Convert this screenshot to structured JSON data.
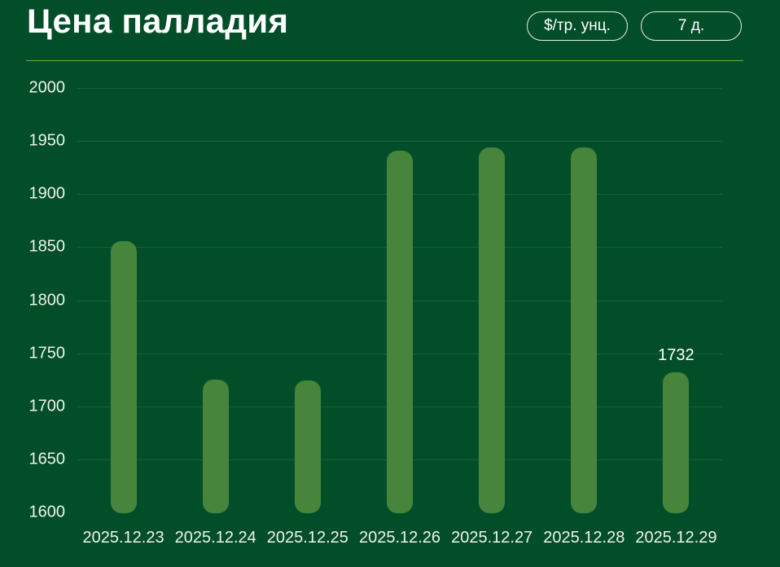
{
  "header": {
    "title": "Цена палладия",
    "unit_button_label": "$/тр. унц.",
    "period_button_label": "7 д."
  },
  "chart_data": {
    "type": "bar",
    "title": "Цена палладия",
    "categories": [
      "2025.12.23",
      "2025.12.24",
      "2025.12.25",
      "2025.12.26",
      "2025.12.27",
      "2025.12.28",
      "2025.12.29"
    ],
    "values": [
      1856,
      1725,
      1724,
      1941,
      1944,
      1944,
      1732
    ],
    "point_labels": [
      "",
      "",
      "",
      "",
      "",
      "",
      "1732"
    ],
    "xlabel": "",
    "ylabel": "",
    "ylim": [
      1600,
      2000
    ],
    "yticks": [
      1600,
      1650,
      1700,
      1750,
      1800,
      1850,
      1900,
      1950,
      2000
    ],
    "grid": true,
    "legend_position": "none",
    "units": "$/тр. унц.",
    "period": "7 д.",
    "bar_color": "#47853c",
    "background_color": "#024e29",
    "text_color": "#eef3ec",
    "divider_color": "#7fa24f"
  }
}
